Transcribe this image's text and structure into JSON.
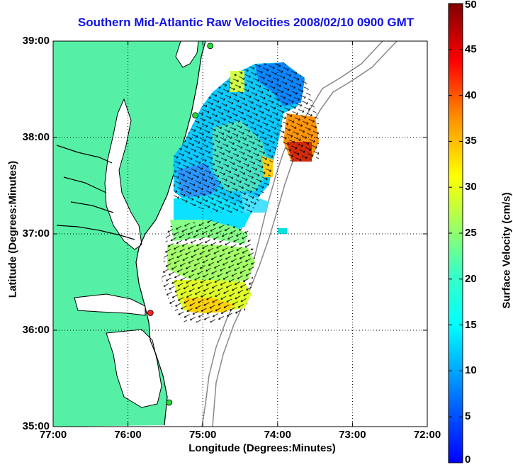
{
  "title": "Southern Mid-Atlantic Raw Velocities 2008/02/10 0900 GMT",
  "xlabel": "Longitude (Degrees:Minutes)",
  "ylabel": "Latitude (Degrees:Minutes)",
  "colorbar_label": "Surface Velocity (cm/s)",
  "x_ticks": [
    "77:00",
    "76:00",
    "75:00",
    "74:00",
    "73:00",
    "72:00"
  ],
  "y_ticks": [
    "39:00",
    "38:00",
    "37:00",
    "36:00",
    "35:00"
  ],
  "colorbar_ticks": [
    "50",
    "45",
    "40",
    "35",
    "30",
    "25",
    "20",
    "15",
    "10",
    "5",
    "0"
  ],
  "colors": {
    "land": "#55f0a5",
    "title": "#1010e8",
    "coastline": "#000000",
    "bathymetry": "#888888",
    "station_red": "#ff2020",
    "station_green": "#22dd33"
  },
  "chart_data": {
    "type": "heatmap",
    "title": "Southern Mid-Atlantic Raw Velocities 2008/02/10 0900 GMT",
    "xlabel": "Longitude (Degrees:Minutes)",
    "ylabel": "Latitude (Degrees:Minutes)",
    "xlim": [
      -77.0,
      -72.0
    ],
    "ylim": [
      35.0,
      39.0
    ],
    "clim": [
      0,
      50
    ],
    "colorbar_label": "Surface Velocity (cm/s)",
    "colormap": "jet",
    "grid": true,
    "stations": [
      {
        "lon": -74.9,
        "lat": 38.95,
        "color": "green"
      },
      {
        "lon": -75.1,
        "lat": 38.23,
        "color": "green"
      },
      {
        "lon": -75.7,
        "lat": 36.18,
        "color": "red"
      },
      {
        "lon": -75.45,
        "lat": 35.25,
        "color": "green"
      }
    ]
  }
}
